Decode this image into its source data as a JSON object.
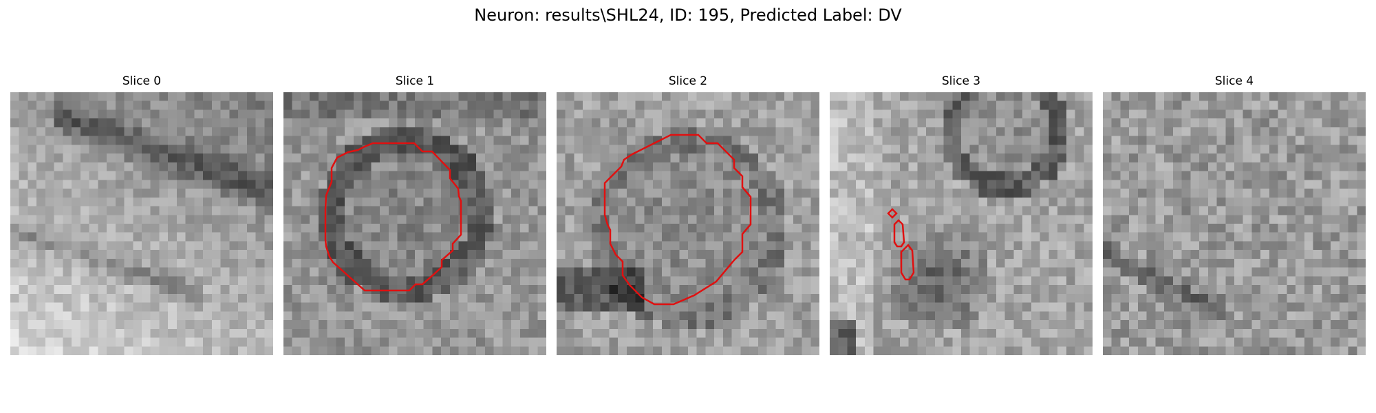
{
  "figure": {
    "title": "Neuron: results\\SHL24, ID: 195, Predicted Label: DV"
  },
  "panels": [
    {
      "title": "Slice 0",
      "contour_count": 0
    },
    {
      "title": "Slice 1",
      "contour_count": 1
    },
    {
      "title": "Slice 2",
      "contour_count": 1
    },
    {
      "title": "Slice 3",
      "contour_count": 3
    },
    {
      "title": "Slice 4",
      "contour_count": 0
    }
  ],
  "colors": {
    "contour": "#e01010",
    "background": "#ffffff"
  }
}
